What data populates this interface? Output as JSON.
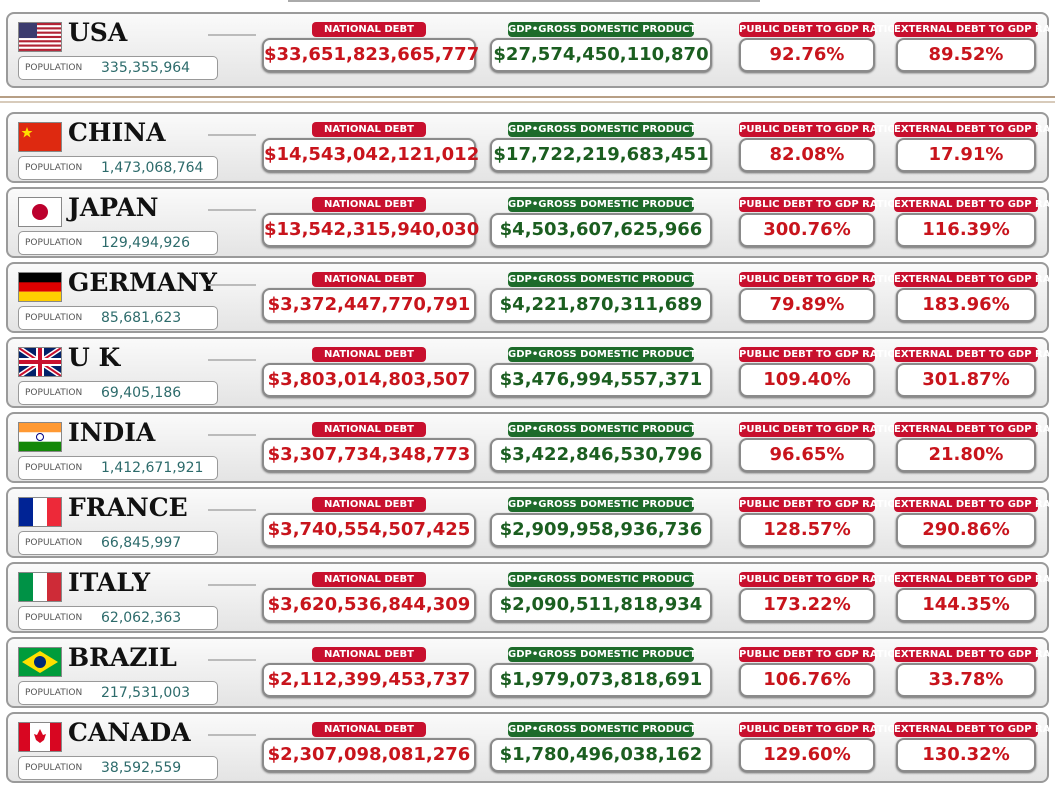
{
  "labels": {
    "population": "POPULATION",
    "national_debt": "NATIONAL DEBT",
    "gdp": "GDP•GROSS DOMESTIC PRODUCT",
    "public_ratio": "PUBLIC DEBT TO GDP RATIO",
    "external_ratio": "EXTERNAL DEBT TO GDP RATIO"
  },
  "rows": [
    {
      "country": "USA",
      "population": "335,355,964",
      "national_debt": "$33,651,823,665,777",
      "gdp": "$27,574,450,110,870",
      "public_ratio": "92.76%",
      "external_ratio": "89.52%"
    },
    {
      "country": "CHINA",
      "population": "1,473,068,764",
      "national_debt": "$14,543,042,121,012",
      "gdp": "$17,722,219,683,451",
      "public_ratio": "82.08%",
      "external_ratio": "17.91%"
    },
    {
      "country": "JAPAN",
      "population": "129,494,926",
      "national_debt": "$13,542,315,940,030",
      "gdp": "$4,503,607,625,966",
      "public_ratio": "300.76%",
      "external_ratio": "116.39%"
    },
    {
      "country": "GERMANY",
      "population": "85,681,623",
      "national_debt": "$3,372,447,770,791",
      "gdp": "$4,221,870,311,689",
      "public_ratio": "79.89%",
      "external_ratio": "183.96%"
    },
    {
      "country": "U K",
      "population": "69,405,186",
      "national_debt": "$3,803,014,803,507",
      "gdp": "$3,476,994,557,371",
      "public_ratio": "109.40%",
      "external_ratio": "301.87%"
    },
    {
      "country": "INDIA",
      "population": "1,412,671,921",
      "national_debt": "$3,307,734,348,773",
      "gdp": "$3,422,846,530,796",
      "public_ratio": "96.65%",
      "external_ratio": "21.80%"
    },
    {
      "country": "FRANCE",
      "population": "66,845,997",
      "national_debt": "$3,740,554,507,425",
      "gdp": "$2,909,958,936,736",
      "public_ratio": "128.57%",
      "external_ratio": "290.86%"
    },
    {
      "country": "ITALY",
      "population": "62,062,363",
      "national_debt": "$3,620,536,844,309",
      "gdp": "$2,090,511,818,934",
      "public_ratio": "173.22%",
      "external_ratio": "144.35%"
    },
    {
      "country": "BRAZIL",
      "population": "217,531,003",
      "national_debt": "$2,112,399,453,737",
      "gdp": "$1,979,073,818,691",
      "public_ratio": "106.76%",
      "external_ratio": "33.78%"
    },
    {
      "country": "CANADA",
      "population": "38,592,559",
      "national_debt": "$2,307,098,081,276",
      "gdp": "$1,780,496,038,162",
      "public_ratio": "129.60%",
      "external_ratio": "130.32%"
    }
  ]
}
